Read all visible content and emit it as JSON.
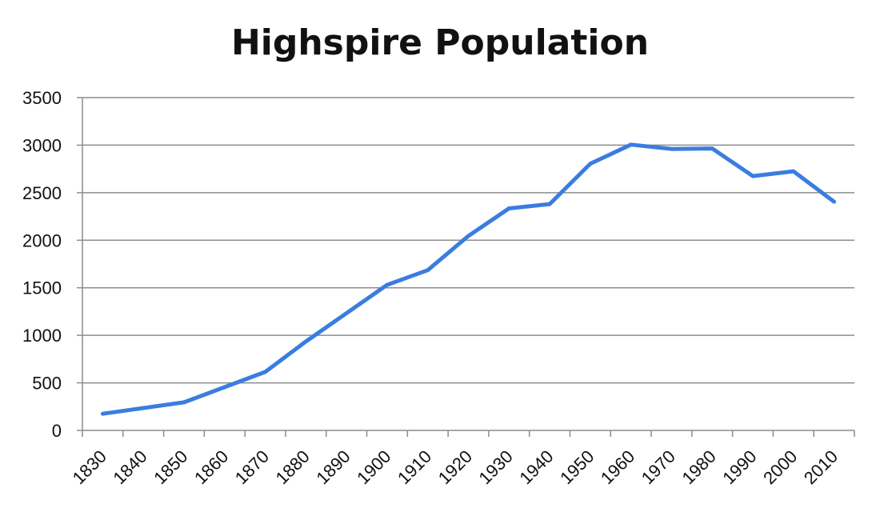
{
  "chart_data": {
    "type": "line",
    "title": "Highspire Population",
    "xlabel": "",
    "ylabel": "",
    "ylim": [
      0,
      3500
    ],
    "yticks": [
      0,
      500,
      1000,
      1500,
      2000,
      2500,
      3000,
      3500
    ],
    "xticks": [
      "1830",
      "1840",
      "1850",
      "1860",
      "1870",
      "1880",
      "1890",
      "1900",
      "1910",
      "1920",
      "1930",
      "1940",
      "1950",
      "1960",
      "1970",
      "1980",
      "1990",
      "2000",
      "2010"
    ],
    "grid": true,
    "legend": "none",
    "series": [
      {
        "color": "#3a7de0",
        "points": [
          {
            "x": 1830,
            "y": 175
          },
          {
            "x": 1850,
            "y": 295
          },
          {
            "x": 1870,
            "y": 615
          },
          {
            "x": 1880,
            "y": 935
          },
          {
            "x": 1900,
            "y": 1530
          },
          {
            "x": 1910,
            "y": 1685
          },
          {
            "x": 1920,
            "y": 2045
          },
          {
            "x": 1930,
            "y": 2335
          },
          {
            "x": 1940,
            "y": 2380
          },
          {
            "x": 1950,
            "y": 2805
          },
          {
            "x": 1960,
            "y": 3005
          },
          {
            "x": 1970,
            "y": 2960
          },
          {
            "x": 1980,
            "y": 2965
          },
          {
            "x": 1990,
            "y": 2675
          },
          {
            "x": 2000,
            "y": 2725
          },
          {
            "x": 2010,
            "y": 2405
          }
        ]
      }
    ]
  }
}
